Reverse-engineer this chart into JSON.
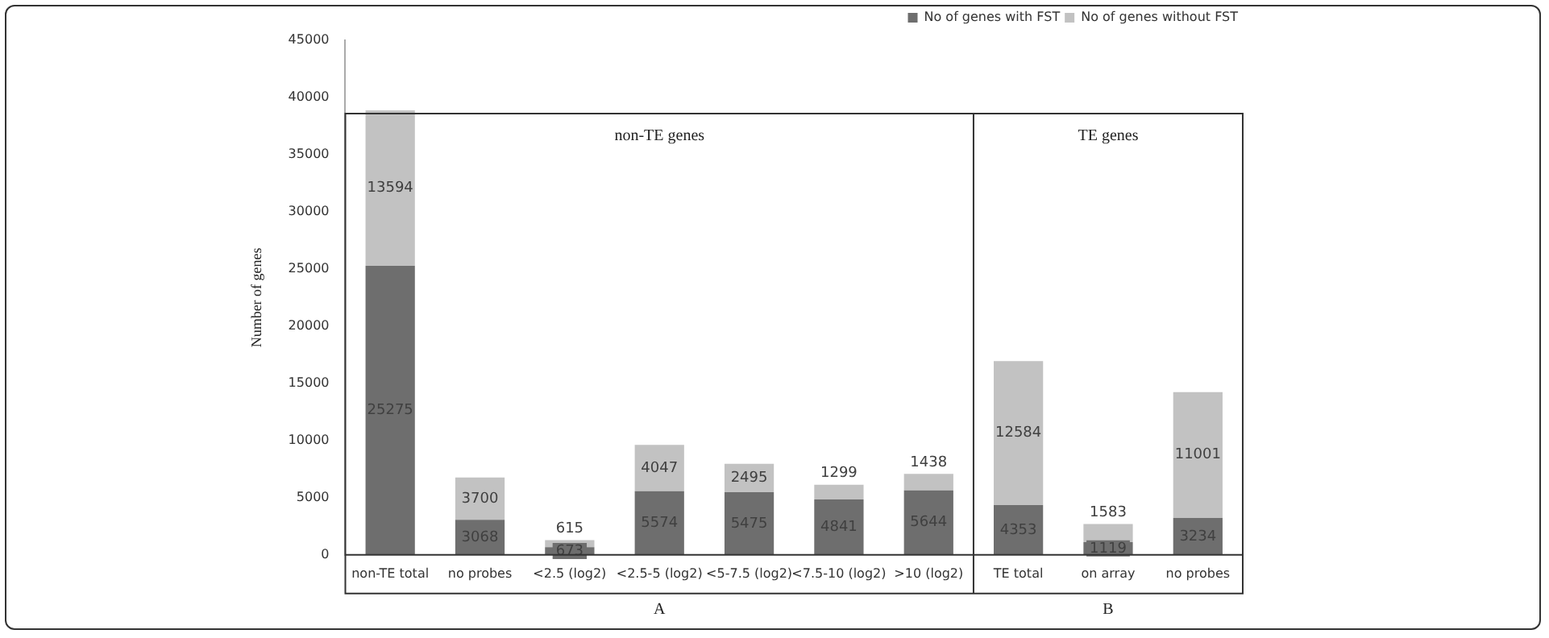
{
  "chart_data": {
    "type": "bar",
    "stacked": true,
    "ylabel": "Number of genes",
    "categories": [
      "non-TE total",
      "no probes",
      "<2.5 (log2)",
      "<2.5-5 (log2)",
      "<5-7.5 (log2)",
      "<7.5-10 (log2)",
      ">10 (log2)",
      "TE total",
      "on array",
      "no probes"
    ],
    "series": [
      {
        "name": "No of genes with FST",
        "color": "#6e6e6e",
        "values": [
          25275,
          3068,
          673,
          5574,
          5475,
          4841,
          5644,
          4353,
          1119,
          3234
        ]
      },
      {
        "name": "No of genes without FST",
        "color": "#c2c2c2",
        "values": [
          13594,
          3700,
          615,
          4047,
          2495,
          1299,
          1438,
          12584,
          1583,
          11001
        ]
      }
    ],
    "ylim": [
      0,
      45000
    ],
    "yticks": [
      0,
      5000,
      10000,
      15000,
      20000,
      25000,
      30000,
      35000,
      40000,
      45000
    ],
    "data_labels": true,
    "legend": "top right",
    "grid": false,
    "annotations": [
      "non-TE genes",
      "TE genes",
      "A",
      "B"
    ]
  }
}
